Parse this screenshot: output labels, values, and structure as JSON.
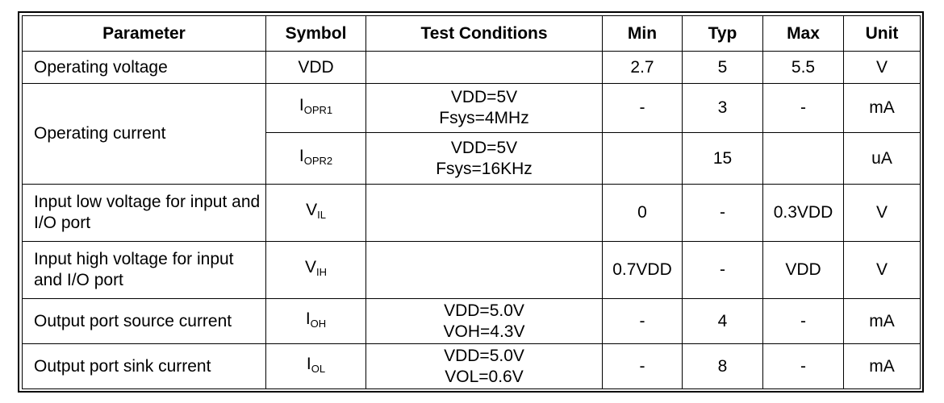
{
  "headers": {
    "parameter": "Parameter",
    "symbol": "Symbol",
    "conditions": "Test Conditions",
    "min": "Min",
    "typ": "Typ",
    "max": "Max",
    "unit": "Unit"
  },
  "rows": [
    {
      "parameter": "Operating voltage",
      "symbol": "VDD",
      "symbol_sub": "",
      "conditions": [],
      "min": "2.7",
      "typ": "5",
      "max": "5.5",
      "unit": "V"
    },
    {
      "parameter": "Operating current",
      "symbol": "I",
      "symbol_sub": "OPR1",
      "conditions": [
        "VDD=5V",
        "Fsys=4MHz"
      ],
      "min": "-",
      "typ": "3",
      "max": "-",
      "unit": "mA"
    },
    {
      "parameter": "",
      "symbol": "I",
      "symbol_sub": "OPR2",
      "conditions": [
        "VDD=5V",
        "Fsys=16KHz"
      ],
      "min": "",
      "typ": "15",
      "max": "",
      "unit": "uA"
    },
    {
      "parameter": "Input low voltage for input and I/O port",
      "symbol": "V",
      "symbol_sub": "IL",
      "conditions": [],
      "min": "0",
      "typ": "-",
      "max": "0.3VDD",
      "unit": "V"
    },
    {
      "parameter": "Input high voltage for input and I/O port",
      "symbol": "V",
      "symbol_sub": "IH",
      "conditions": [],
      "min": "0.7VDD",
      "typ": "-",
      "max": "VDD",
      "unit": "V"
    },
    {
      "parameter": "Output port source current",
      "symbol": "I",
      "symbol_sub": "OH",
      "conditions": [
        "VDD=5.0V",
        "VOH=4.3V"
      ],
      "min": "-",
      "typ": "4",
      "max": "-",
      "unit": "mA"
    },
    {
      "parameter": "Output port sink current",
      "symbol": "I",
      "symbol_sub": "OL",
      "conditions": [
        "VDD=5.0V",
        "VOL=0.6V"
      ],
      "min": "-",
      "typ": "8",
      "max": "-",
      "unit": "mA"
    }
  ]
}
